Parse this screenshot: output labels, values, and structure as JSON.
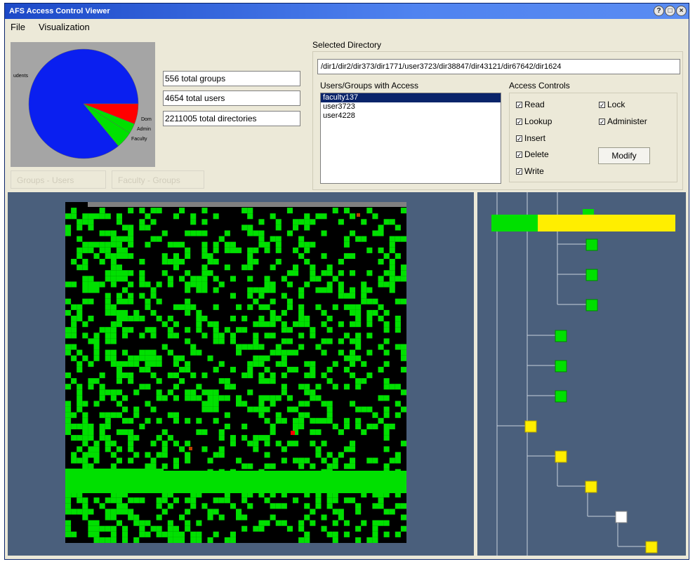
{
  "window": {
    "title": "AFS Access Control Viewer"
  },
  "menu": {
    "file": "File",
    "visualization": "Visualization"
  },
  "pie": {
    "slices": [
      {
        "label": "udents",
        "value": 86,
        "color": "#0a1ff0"
      },
      {
        "label": "Dom",
        "value": 6,
        "color": "#ff0000"
      },
      {
        "label": "Admin",
        "value": 3,
        "color": "#00e000"
      },
      {
        "label": "Faculty",
        "value": 5,
        "color": "#00e000"
      }
    ]
  },
  "stats": {
    "groups": "556 total groups",
    "users": "4654 total users",
    "directories": "2211005 total directories"
  },
  "toggles": {
    "groups_users": "Groups - Users",
    "faculty_groups": "Faculty - Groups"
  },
  "selected_directory": {
    "label": "Selected Directory",
    "path": "/dir1/dir2/dir373/dir1771/user3723/dir38847/dir43121/dir67642/dir1624"
  },
  "access_list": {
    "label": "Users/Groups with Access",
    "items": [
      "faculty137",
      "user3723",
      "user4228"
    ]
  },
  "access_controls": {
    "label": "Access Controls",
    "read": "Read",
    "lookup": "Lookup",
    "insert": "Insert",
    "delete": "Delete",
    "write": "Write",
    "lock": "Lock",
    "administer": "Administer",
    "check_mark": "✓",
    "modify": "Modify"
  },
  "colors": {
    "green": "#00e000",
    "yellow": "#ffee00",
    "panel": "#4a5f7c"
  }
}
